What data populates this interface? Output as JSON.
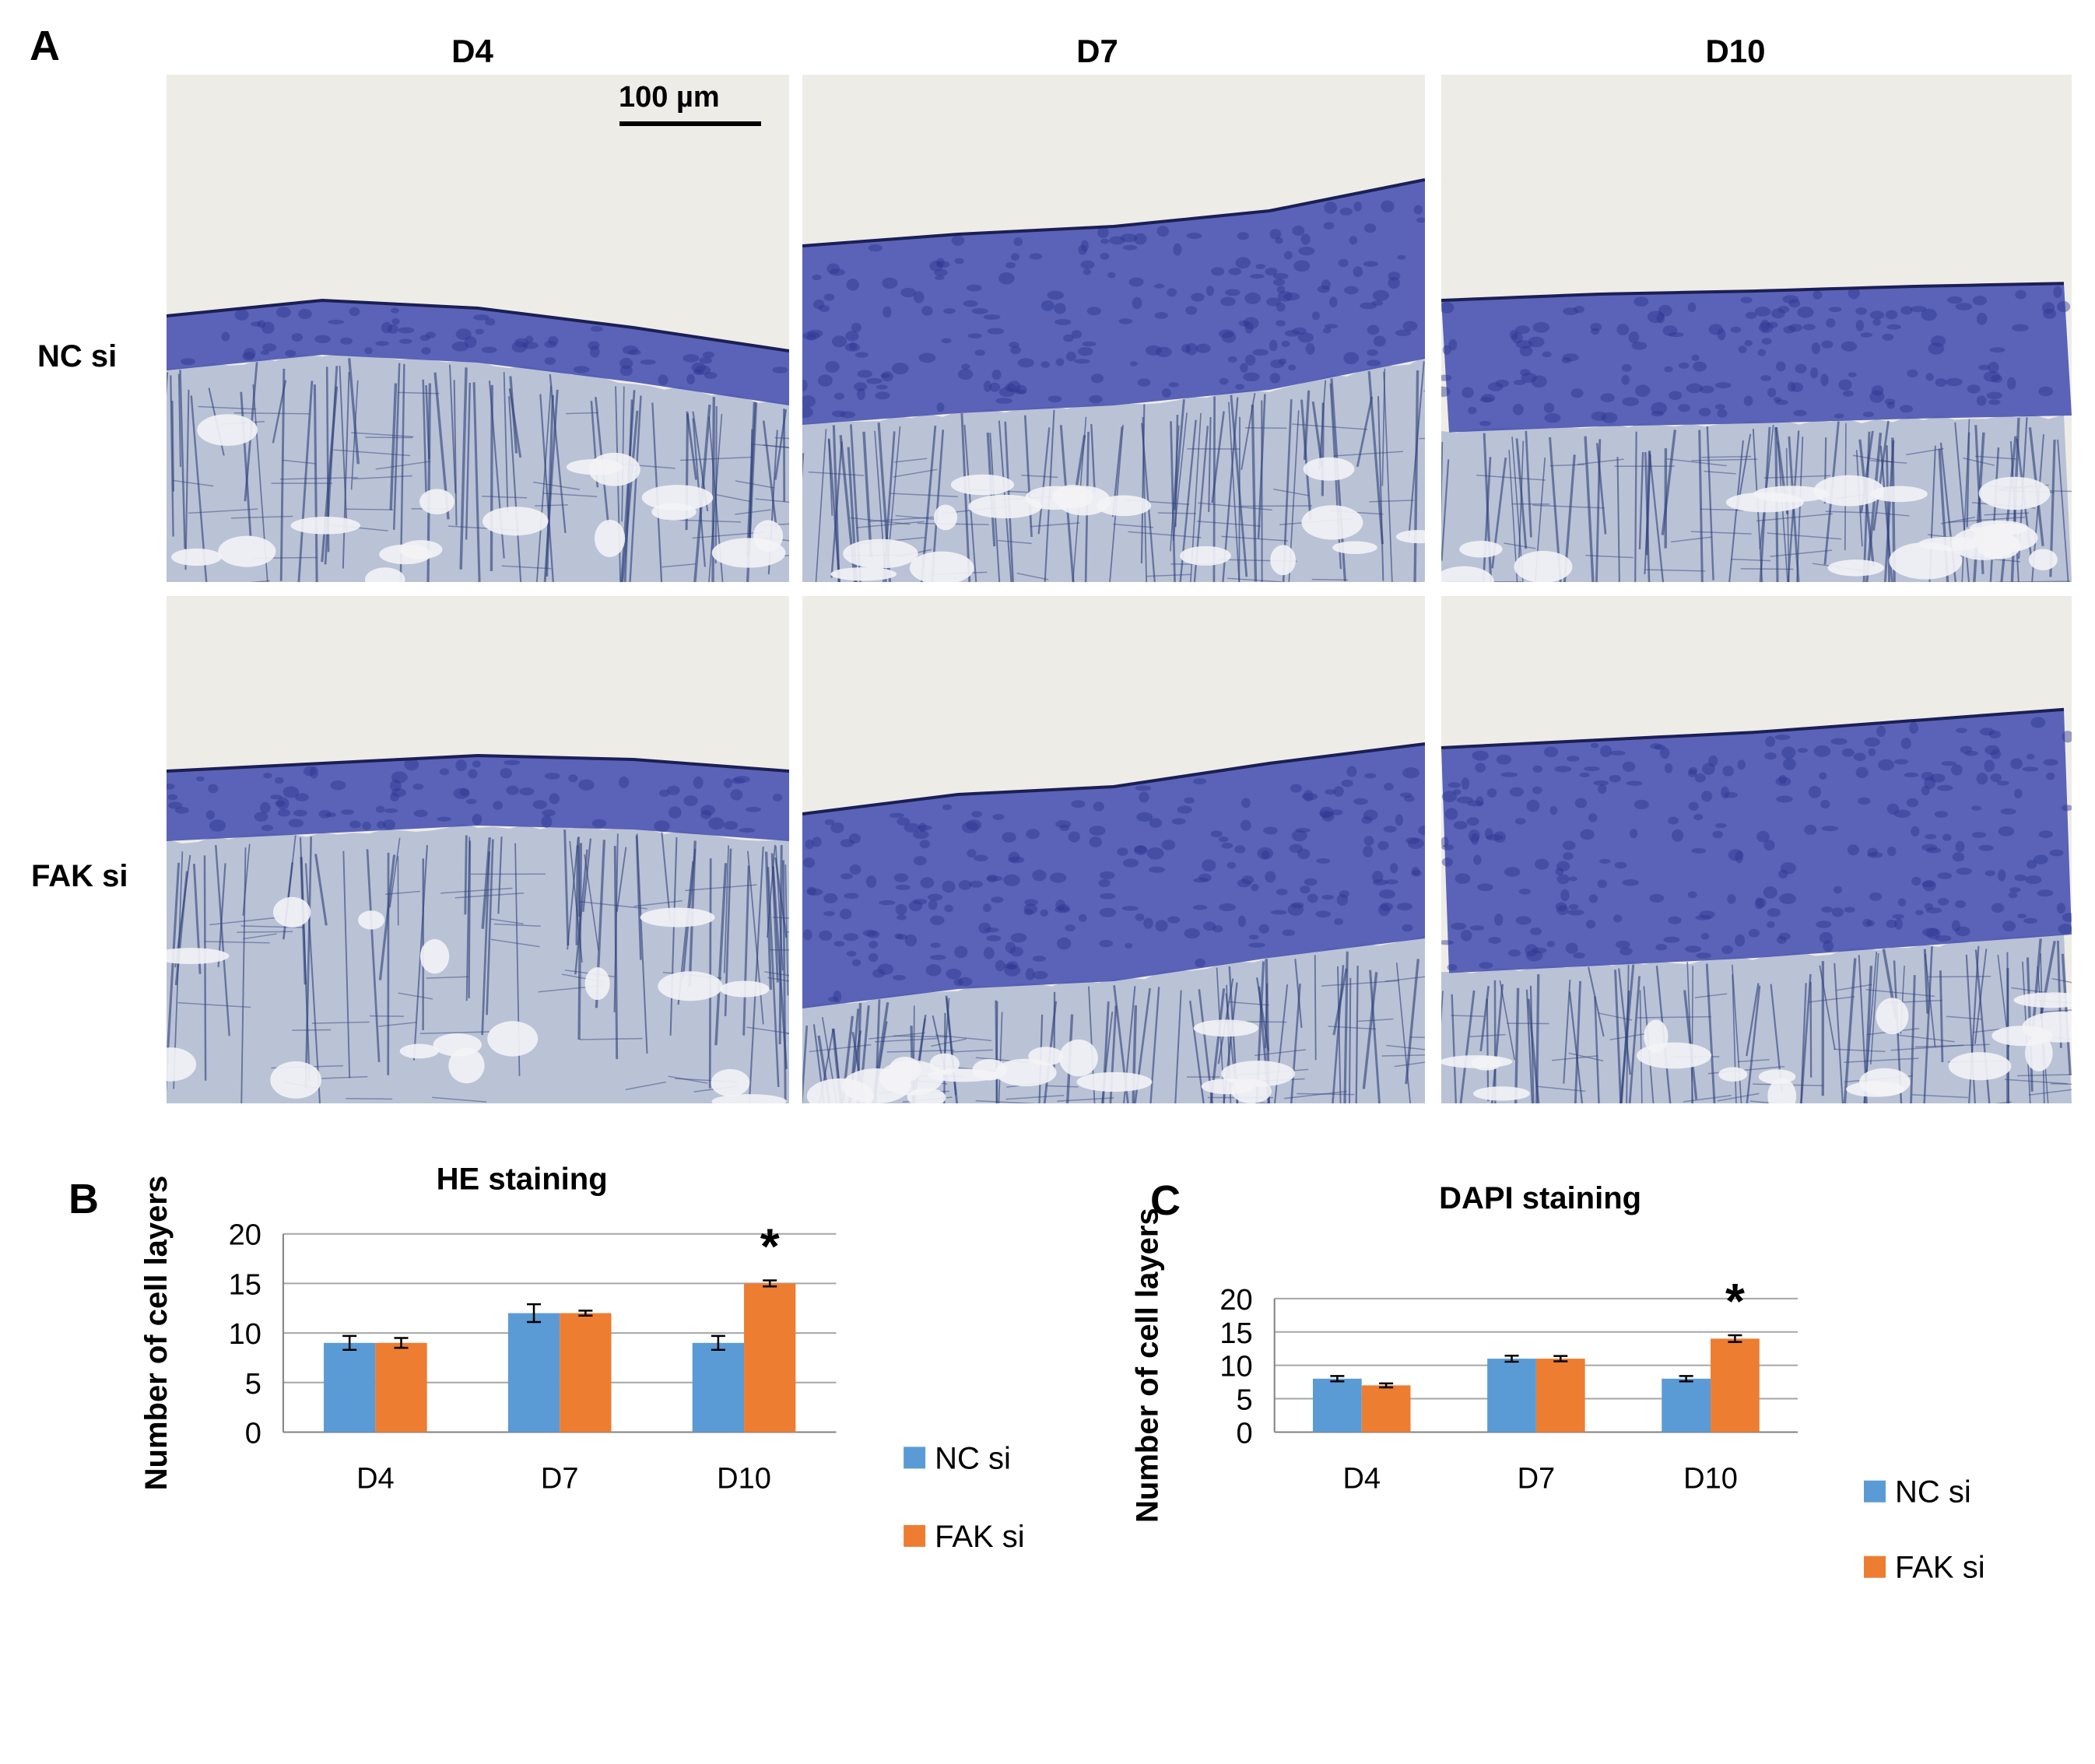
{
  "panels": {
    "a": {
      "letter": "A"
    },
    "b": {
      "letter": "B"
    },
    "c": {
      "letter": "C"
    }
  },
  "micrographs": {
    "columns": [
      "D4",
      "D7",
      "D10"
    ],
    "rows": [
      "NC si",
      "FAK si"
    ],
    "scale_bar": "100 µm",
    "colors": {
      "background": "#eeece6",
      "epithelium": "#4650b0",
      "stroma": "#8fa0c8",
      "stroma_dark": "#2e3f7a"
    }
  },
  "colors": {
    "nc": "#5b9bd5",
    "fak": "#ed7d31",
    "grid": "#a6a6a6",
    "axis": "#808080"
  },
  "chart_data": [
    {
      "type": "bar",
      "title": "HE  staining",
      "categories": [
        "D4",
        "D7",
        "D10"
      ],
      "series": [
        {
          "name": "NC si",
          "values": [
            9,
            12,
            9
          ],
          "errors": [
            0.7,
            0.9,
            0.7
          ]
        },
        {
          "name": "FAK si",
          "values": [
            9,
            12,
            15
          ],
          "errors": [
            0.5,
            0.25,
            0.3
          ]
        }
      ],
      "ylabel": "Number of cell layers",
      "xlabel": "",
      "ylim": [
        0,
        20
      ],
      "yticks": [
        0,
        5,
        10,
        15,
        20
      ],
      "grid": true,
      "legend": "right",
      "annotations": [
        {
          "category": "D10",
          "series": "FAK si",
          "text": "*"
        }
      ]
    },
    {
      "type": "bar",
      "title": "DAPI staining",
      "categories": [
        "D4",
        "D7",
        "D10"
      ],
      "series": [
        {
          "name": "NC si",
          "values": [
            8,
            11,
            8
          ],
          "errors": [
            0.4,
            0.45,
            0.4
          ]
        },
        {
          "name": "FAK si",
          "values": [
            7,
            11,
            14
          ],
          "errors": [
            0.3,
            0.4,
            0.5
          ]
        }
      ],
      "ylabel": "Number of cell layers",
      "xlabel": "",
      "ylim": [
        0,
        20
      ],
      "yticks": [
        0,
        5,
        10,
        15,
        20
      ],
      "grid": true,
      "legend": "right",
      "annotations": [
        {
          "category": "D10",
          "series": "FAK si",
          "text": "*"
        }
      ]
    }
  ]
}
